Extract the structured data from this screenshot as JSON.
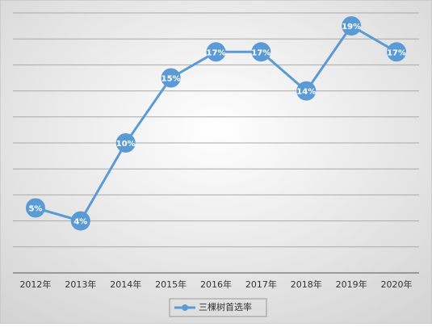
{
  "chart_data": {
    "type": "line",
    "categories": [
      "2012年",
      "2013年",
      "2014年",
      "2015年",
      "2016年",
      "2017年",
      "2018年",
      "2019年",
      "2020年"
    ],
    "series": [
      {
        "name": "三棵树首选率",
        "color": "#5b9bd5",
        "values": [
          5,
          4,
          10,
          15,
          17,
          17,
          14,
          19,
          17
        ],
        "value_labels": [
          "5%",
          "4%",
          "10%",
          "15%",
          "17%",
          "17%",
          "14%",
          "19%",
          "17%"
        ]
      }
    ],
    "ylim": [
      0,
      20
    ],
    "yticks": [
      0,
      2,
      4,
      6,
      8,
      10,
      12,
      14,
      16,
      18,
      20
    ],
    "grid": true
  }
}
